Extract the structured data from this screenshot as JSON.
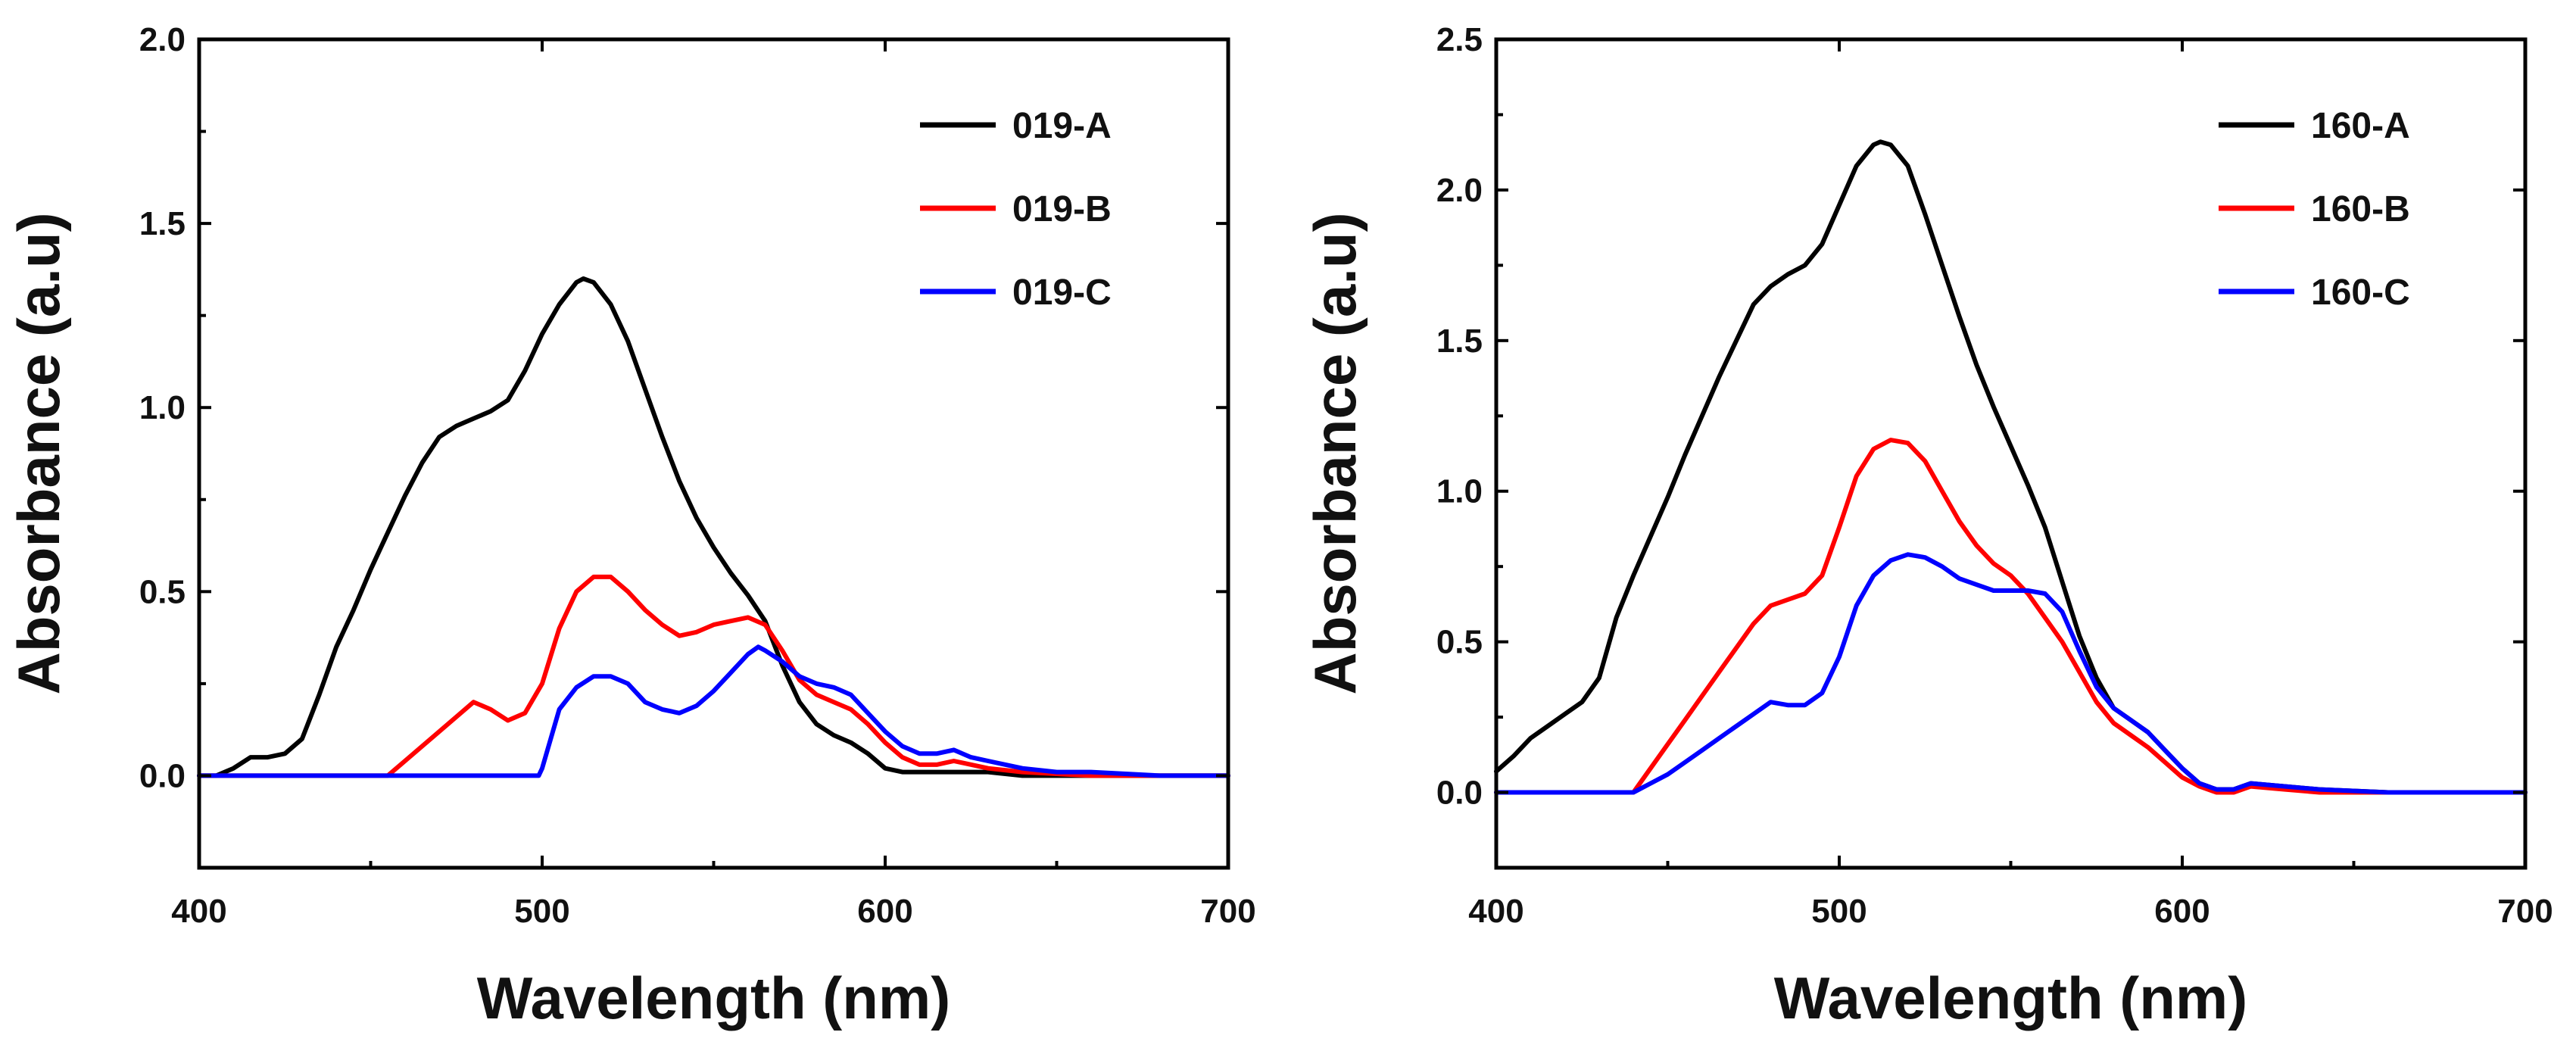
{
  "chart_data": [
    {
      "type": "line",
      "title": "",
      "xlabel": "Wavelength (nm)",
      "ylabel": "Absorbance (a.u)",
      "xlim": [
        400,
        700
      ],
      "ylim": [
        -0.25,
        2.0
      ],
      "xticks": [
        400,
        500,
        600,
        700
      ],
      "xtick_labels": [
        "400",
        "500",
        "600",
        "700"
      ],
      "yticks": [
        0.0,
        0.5,
        1.0,
        1.5,
        2.0
      ],
      "ytick_labels": [
        "0.0",
        "0.5",
        "1.0",
        "1.5",
        "2.0"
      ],
      "grid": false,
      "legend_position": "top-right",
      "series": [
        {
          "name": "019-A",
          "color": "#000000",
          "x": [
            400,
            405,
            410,
            415,
            420,
            425,
            430,
            435,
            440,
            445,
            450,
            455,
            460,
            465,
            470,
            475,
            480,
            485,
            490,
            495,
            500,
            505,
            510,
            512,
            515,
            520,
            525,
            530,
            535,
            540,
            545,
            550,
            555,
            560,
            565,
            570,
            575,
            580,
            585,
            590,
            595,
            600,
            605,
            610,
            620,
            630,
            640,
            660,
            700
          ],
          "y": [
            0.0,
            0.0,
            0.02,
            0.05,
            0.05,
            0.06,
            0.1,
            0.22,
            0.35,
            0.45,
            0.56,
            0.66,
            0.76,
            0.85,
            0.92,
            0.95,
            0.97,
            0.99,
            1.02,
            1.1,
            1.2,
            1.28,
            1.34,
            1.35,
            1.34,
            1.28,
            1.18,
            1.05,
            0.92,
            0.8,
            0.7,
            0.62,
            0.55,
            0.49,
            0.42,
            0.3,
            0.2,
            0.14,
            0.11,
            0.09,
            0.06,
            0.02,
            0.01,
            0.01,
            0.01,
            0.01,
            0.0,
            0.0,
            0.0
          ]
        },
        {
          "name": "019-B",
          "color": "#ff0000",
          "x": [
            400,
            455,
            460,
            465,
            470,
            475,
            480,
            485,
            490,
            495,
            500,
            505,
            510,
            515,
            520,
            525,
            530,
            535,
            540,
            545,
            550,
            555,
            560,
            565,
            570,
            575,
            580,
            585,
            590,
            595,
            600,
            605,
            610,
            615,
            620,
            630,
            640,
            660,
            700
          ],
          "y": [
            0.0,
            0.0,
            0.04,
            0.08,
            0.12,
            0.16,
            0.2,
            0.18,
            0.15,
            0.17,
            0.25,
            0.4,
            0.5,
            0.54,
            0.54,
            0.5,
            0.45,
            0.41,
            0.38,
            0.39,
            0.41,
            0.42,
            0.43,
            0.41,
            0.34,
            0.26,
            0.22,
            0.2,
            0.18,
            0.14,
            0.09,
            0.05,
            0.03,
            0.03,
            0.04,
            0.02,
            0.01,
            0.0,
            0.0
          ]
        },
        {
          "name": "019-C",
          "color": "#0000ff",
          "x": [
            400,
            499,
            500,
            505,
            510,
            515,
            520,
            525,
            530,
            535,
            540,
            545,
            550,
            555,
            560,
            563,
            565,
            570,
            575,
            580,
            585,
            590,
            595,
            600,
            605,
            610,
            615,
            620,
            625,
            630,
            640,
            650,
            660,
            680,
            700
          ],
          "y": [
            0.0,
            0.0,
            0.02,
            0.18,
            0.24,
            0.27,
            0.27,
            0.25,
            0.2,
            0.18,
            0.17,
            0.19,
            0.23,
            0.28,
            0.33,
            0.35,
            0.34,
            0.31,
            0.27,
            0.25,
            0.24,
            0.22,
            0.17,
            0.12,
            0.08,
            0.06,
            0.06,
            0.07,
            0.05,
            0.04,
            0.02,
            0.01,
            0.01,
            0.0,
            0.0
          ]
        }
      ]
    },
    {
      "type": "line",
      "title": "",
      "xlabel": "Wavelength (nm)",
      "ylabel": "Absorbance (a.u)",
      "xlim": [
        400,
        700
      ],
      "ylim": [
        -0.25,
        2.5
      ],
      "xticks": [
        400,
        500,
        600,
        700
      ],
      "xtick_labels": [
        "400",
        "500",
        "600",
        "700"
      ],
      "yticks": [
        0.0,
        0.5,
        1.0,
        1.5,
        2.0,
        2.5
      ],
      "ytick_labels": [
        "0.0",
        "0.5",
        "1.0",
        "1.5",
        "2.0",
        "2.5"
      ],
      "grid": false,
      "legend_position": "top-right",
      "series": [
        {
          "name": "160-A",
          "color": "#000000",
          "x": [
            400,
            405,
            410,
            415,
            420,
            425,
            430,
            435,
            440,
            445,
            450,
            455,
            460,
            465,
            470,
            475,
            480,
            485,
            490,
            495,
            500,
            505,
            510,
            512,
            515,
            520,
            525,
            530,
            535,
            540,
            545,
            550,
            555,
            560,
            565,
            570,
            575,
            580,
            585,
            590,
            595,
            600,
            605,
            610,
            615,
            620,
            630,
            640,
            660,
            700
          ],
          "y": [
            0.07,
            0.12,
            0.18,
            0.22,
            0.26,
            0.3,
            0.38,
            0.58,
            0.72,
            0.85,
            0.98,
            1.12,
            1.25,
            1.38,
            1.5,
            1.62,
            1.68,
            1.72,
            1.75,
            1.82,
            1.95,
            2.08,
            2.15,
            2.16,
            2.15,
            2.08,
            1.92,
            1.75,
            1.58,
            1.42,
            1.28,
            1.15,
            1.02,
            0.88,
            0.7,
            0.52,
            0.38,
            0.28,
            0.24,
            0.2,
            0.14,
            0.08,
            0.03,
            0.01,
            0.01,
            0.03,
            0.02,
            0.01,
            0.0,
            0.0
          ]
        },
        {
          "name": "160-B",
          "color": "#ff0000",
          "x": [
            400,
            440,
            445,
            450,
            455,
            460,
            465,
            470,
            475,
            480,
            485,
            490,
            495,
            500,
            505,
            510,
            515,
            520,
            525,
            530,
            535,
            540,
            545,
            550,
            555,
            560,
            565,
            570,
            575,
            580,
            585,
            590,
            595,
            600,
            605,
            610,
            615,
            620,
            630,
            640,
            660,
            700
          ],
          "y": [
            0.0,
            0.0,
            0.08,
            0.16,
            0.24,
            0.32,
            0.4,
            0.48,
            0.56,
            0.62,
            0.64,
            0.66,
            0.72,
            0.88,
            1.05,
            1.14,
            1.17,
            1.16,
            1.1,
            1.0,
            0.9,
            0.82,
            0.76,
            0.72,
            0.66,
            0.58,
            0.5,
            0.4,
            0.3,
            0.23,
            0.19,
            0.15,
            0.1,
            0.05,
            0.02,
            0.0,
            0.0,
            0.02,
            0.01,
            0.0,
            0.0,
            0.0
          ]
        },
        {
          "name": "160-C",
          "color": "#0000ff",
          "x": [
            400,
            440,
            445,
            450,
            455,
            460,
            465,
            470,
            475,
            480,
            485,
            490,
            495,
            500,
            505,
            510,
            515,
            520,
            525,
            530,
            535,
            540,
            545,
            550,
            555,
            560,
            565,
            570,
            575,
            580,
            585,
            590,
            595,
            600,
            605,
            610,
            615,
            620,
            630,
            640,
            660,
            700
          ],
          "y": [
            0.0,
            0.0,
            0.03,
            0.06,
            0.1,
            0.14,
            0.18,
            0.22,
            0.26,
            0.3,
            0.29,
            0.29,
            0.33,
            0.45,
            0.62,
            0.72,
            0.77,
            0.79,
            0.78,
            0.75,
            0.71,
            0.69,
            0.67,
            0.67,
            0.67,
            0.66,
            0.6,
            0.47,
            0.35,
            0.28,
            0.24,
            0.2,
            0.14,
            0.08,
            0.03,
            0.01,
            0.01,
            0.03,
            0.02,
            0.01,
            0.0,
            0.0
          ]
        }
      ]
    }
  ]
}
